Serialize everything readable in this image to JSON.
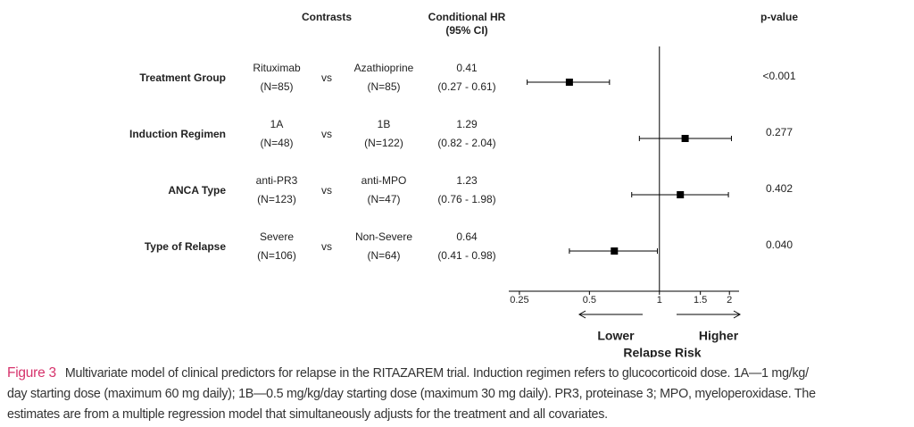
{
  "chart_data": {
    "type": "forest",
    "headers": {
      "contrasts": "Contrasts",
      "hr": [
        "Conditional HR",
        "(95% CI)"
      ],
      "p": "p-value"
    },
    "rows": [
      {
        "label": "Treatment Group",
        "group_a": "Rituximab",
        "n_a": "(N=85)",
        "vs": "vs",
        "group_b": "Azathioprine",
        "n_b": "(N=85)",
        "hr": 0.41,
        "ci_low": 0.27,
        "ci_high": 0.61,
        "ci_label": "(0.27 - 0.61)",
        "p_value": "<0.001"
      },
      {
        "label": "Induction Regimen",
        "group_a": "1A",
        "n_a": "(N=48)",
        "vs": "vs",
        "group_b": "1B",
        "n_b": "(N=122)",
        "hr": 1.29,
        "ci_low": 0.82,
        "ci_high": 2.04,
        "ci_label": "(0.82 - 2.04)",
        "p_value": "0.277"
      },
      {
        "label": "ANCA Type",
        "group_a": "anti-PR3",
        "n_a": "(N=123)",
        "vs": "vs",
        "group_b": "anti-MPO",
        "n_b": "(N=47)",
        "hr": 1.23,
        "ci_low": 0.76,
        "ci_high": 1.98,
        "ci_label": "(0.76 - 1.98)",
        "p_value": "0.402"
      },
      {
        "label": "Type of Relapse",
        "group_a": "Severe",
        "n_a": "(N=106)",
        "vs": "vs",
        "group_b": "Non-Severe",
        "n_b": "(N=64)",
        "hr": 0.64,
        "ci_low": 0.41,
        "ci_high": 0.98,
        "ci_label": "(0.41 - 0.98)",
        "p_value": "0.040"
      }
    ],
    "log_scale": true,
    "xlim": [
      0.225,
      2.2
    ],
    "xticks": [
      0.25,
      0.5,
      1,
      1.5,
      2
    ],
    "reference_line": 1,
    "xlabel": "Relapse Risk",
    "direction_labels": [
      "Lower",
      "Higher"
    ],
    "color": "#000000"
  },
  "figure": {
    "label": "Figure 3",
    "lines": [
      "Multivariate model of clinical predictors for relapse in the RITAZAREM trial. Induction regimen refers to glucocorticoid dose. 1A—1 mg/kg/",
      "day starting dose (maximum 60 mg daily); 1B—0.5 mg/kg/day starting dose (maximum 30 mg daily). PR3, proteinase 3; MPO, myeloperoxidase. The",
      "estimates are from a multiple regression model that simultaneously adjusts for the treatment and all covariates."
    ]
  }
}
